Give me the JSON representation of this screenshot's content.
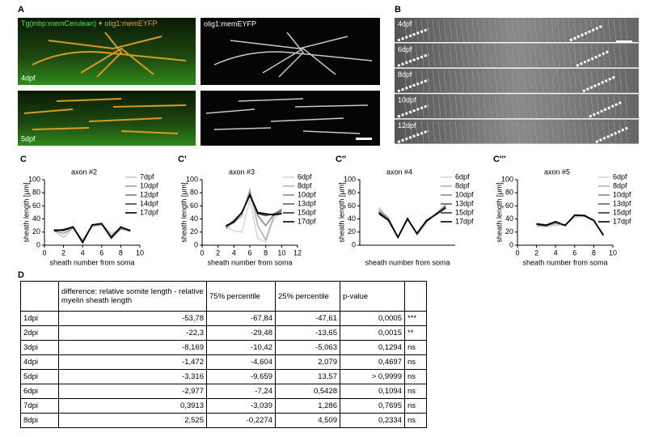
{
  "panels": {
    "a": "A",
    "b": "B",
    "c": "C",
    "c1": "C'",
    "c2": "C''",
    "c3": "C'''",
    "d": "D"
  },
  "images": {
    "a_caption": [
      "Tg(mbp:memCerulean)",
      "+",
      "olig1:memEYFP"
    ],
    "a_right_caption": "olig1:memEYFP",
    "a_top_stage": "4dpf",
    "a_bottom_stage": "5dpf",
    "b_stages": [
      "4dpf",
      "6dpf",
      "8dpf",
      "10dpf",
      "12dpf"
    ]
  },
  "chart_data": [
    {
      "type": "line",
      "title": "axon #2",
      "xlabel": "sheath number from soma",
      "ylabel": "sheath length [µm]",
      "xlim": [
        0,
        10
      ],
      "xticks": [
        0,
        2,
        4,
        6,
        8,
        10
      ],
      "ylim": [
        0,
        100
      ],
      "yticks": [
        0,
        20,
        40,
        60,
        80,
        100
      ],
      "x": [
        1,
        2,
        3,
        4,
        5,
        6,
        7,
        8,
        9
      ],
      "series": [
        {
          "name": "7dpf",
          "color": "#c8c8c8",
          "values": [
            22,
            12,
            27,
            8,
            30,
            32,
            18,
            25,
            22
          ]
        },
        {
          "name": "10dpf",
          "color": "#a0a0a0",
          "values": [
            22,
            18,
            26,
            6,
            29,
            31,
            14,
            26,
            21
          ]
        },
        {
          "name": "12dpf",
          "color": "#7a7a7a",
          "values": [
            24,
            22,
            27,
            4,
            30,
            32,
            10,
            25,
            22
          ]
        },
        {
          "name": "14dpf",
          "color": "#444444",
          "values": [
            23,
            24,
            28,
            5,
            31,
            33,
            12,
            27,
            23
          ]
        },
        {
          "name": "17dpf",
          "color": "#000000",
          "values": [
            22,
            23,
            28,
            4,
            31,
            33,
            12,
            28,
            22
          ]
        }
      ]
    },
    {
      "type": "line",
      "title": "axon #3",
      "xlabel": "sheath number from soma",
      "ylabel": "sheath length [µm]",
      "xlim": [
        0,
        12
      ],
      "xticks": [
        0,
        2,
        4,
        6,
        8,
        10,
        12
      ],
      "ylim": [
        0,
        100
      ],
      "yticks": [
        0,
        20,
        40,
        60,
        80,
        100
      ],
      "x": [
        3,
        4,
        5,
        6,
        7,
        8,
        9,
        10
      ],
      "series": [
        {
          "name": "6dpf",
          "color": "#d8d8d8",
          "values": [
            28,
            22,
            20,
            70,
            10,
            5,
            40,
            50
          ]
        },
        {
          "name": "8dpf",
          "color": "#b4b4b4",
          "values": [
            25,
            35,
            45,
            85,
            30,
            8,
            45,
            55
          ]
        },
        {
          "name": "10dpf",
          "color": "#8c8c8c",
          "values": [
            27,
            38,
            48,
            80,
            45,
            30,
            47,
            55
          ]
        },
        {
          "name": "13dpf",
          "color": "#646464",
          "values": [
            28,
            38,
            50,
            76,
            48,
            45,
            48,
            52
          ]
        },
        {
          "name": "15dpf",
          "color": "#333333",
          "values": [
            29,
            36,
            50,
            76,
            48,
            47,
            47,
            49
          ]
        },
        {
          "name": "17dpf",
          "color": "#000000",
          "values": [
            30,
            35,
            50,
            77,
            50,
            48,
            46,
            48
          ]
        }
      ]
    },
    {
      "type": "line",
      "title": "axon #4",
      "xlabel": "sheath number from soma",
      "ylabel": "sheath length [µm]",
      "xlim": [
        0,
        10
      ],
      "ylim": [
        0,
        100
      ],
      "yticks": [
        0,
        20,
        40,
        60,
        80,
        100
      ],
      "x": [
        2,
        3,
        4,
        5,
        6,
        7,
        8,
        9
      ],
      "series": [
        {
          "name": "6dpf",
          "color": "#d8d8d8",
          "values": [
            58,
            40,
            12,
            40,
            15,
            35,
            48,
            60
          ]
        },
        {
          "name": "8dpf",
          "color": "#b4b4b4",
          "values": [
            55,
            42,
            13,
            42,
            16,
            36,
            48,
            62
          ]
        },
        {
          "name": "10dpf",
          "color": "#8c8c8c",
          "values": [
            52,
            40,
            12,
            40,
            17,
            36,
            48,
            60
          ]
        },
        {
          "name": "13dpf",
          "color": "#646464",
          "values": [
            50,
            40,
            12,
            41,
            17,
            37,
            48,
            58
          ]
        },
        {
          "name": "15dpf",
          "color": "#333333",
          "values": [
            50,
            38,
            12,
            40,
            18,
            37,
            47,
            57
          ]
        },
        {
          "name": "17dpf",
          "color": "#000000",
          "values": [
            48,
            38,
            12,
            40,
            18,
            38,
            47,
            57
          ]
        }
      ]
    },
    {
      "type": "line",
      "title": "axon #5",
      "xlabel": "sheath number from soma",
      "ylabel": "sheath length [µm]",
      "xlim": [
        0,
        10
      ],
      "xticks": [
        0,
        2,
        4,
        6,
        8,
        10
      ],
      "ylim": [
        0,
        100
      ],
      "yticks": [
        0,
        20,
        40,
        60,
        80,
        100
      ],
      "x": [
        2,
        3,
        4,
        5,
        6,
        7,
        8,
        9
      ],
      "series": [
        {
          "name": "6dpf",
          "color": "#d8d8d8",
          "values": [
            28,
            28,
            30,
            32,
            42,
            44,
            36,
            18
          ]
        },
        {
          "name": "8dpf",
          "color": "#b4b4b4",
          "values": [
            30,
            29,
            33,
            30,
            44,
            45,
            37,
            17
          ]
        },
        {
          "name": "10dpf",
          "color": "#8c8c8c",
          "values": [
            32,
            30,
            34,
            31,
            45,
            46,
            38,
            16
          ]
        },
        {
          "name": "13dpf",
          "color": "#646464",
          "values": [
            33,
            30,
            35,
            30,
            46,
            46,
            38,
            15
          ]
        },
        {
          "name": "15dpf",
          "color": "#333333",
          "values": [
            33,
            31,
            36,
            30,
            46,
            45,
            38,
            15
          ]
        },
        {
          "name": "17dpf",
          "color": "#000000",
          "values": [
            32,
            30,
            36,
            30,
            46,
            45,
            38,
            15
          ]
        }
      ]
    }
  ],
  "table": {
    "header": [
      "difference: relative somite length - relative myelin sheath length",
      "75% percentile",
      "25% percentile",
      "p-value"
    ],
    "rows": [
      [
        "1dpi",
        "-53,78",
        "-67,84",
        "-47,61",
        "0,0005",
        "***"
      ],
      [
        "2dpi",
        "-22,3",
        "-29,48",
        "-13,65",
        "0,0015",
        "**"
      ],
      [
        "3dpi",
        "-8,169",
        "-10,42",
        "-5,063",
        "0,1294",
        "ns"
      ],
      [
        "4dpi",
        "-1,472",
        "-4,604",
        "2,079",
        "0,4697",
        "ns"
      ],
      [
        "5dpi",
        "-3,316",
        "-9,659",
        "13,57",
        "> 0,9999",
        "ns"
      ],
      [
        "6dpi",
        "-2,977",
        "-7,24",
        "0,5428",
        "0,1094",
        "ns"
      ],
      [
        "7dpi",
        "0,3913",
        "-3,039",
        "1,286",
        "0,7695",
        "ns"
      ],
      [
        "8dpi",
        "2,525",
        "-0,2274",
        "4,509",
        "0,2334",
        "ns"
      ]
    ]
  }
}
